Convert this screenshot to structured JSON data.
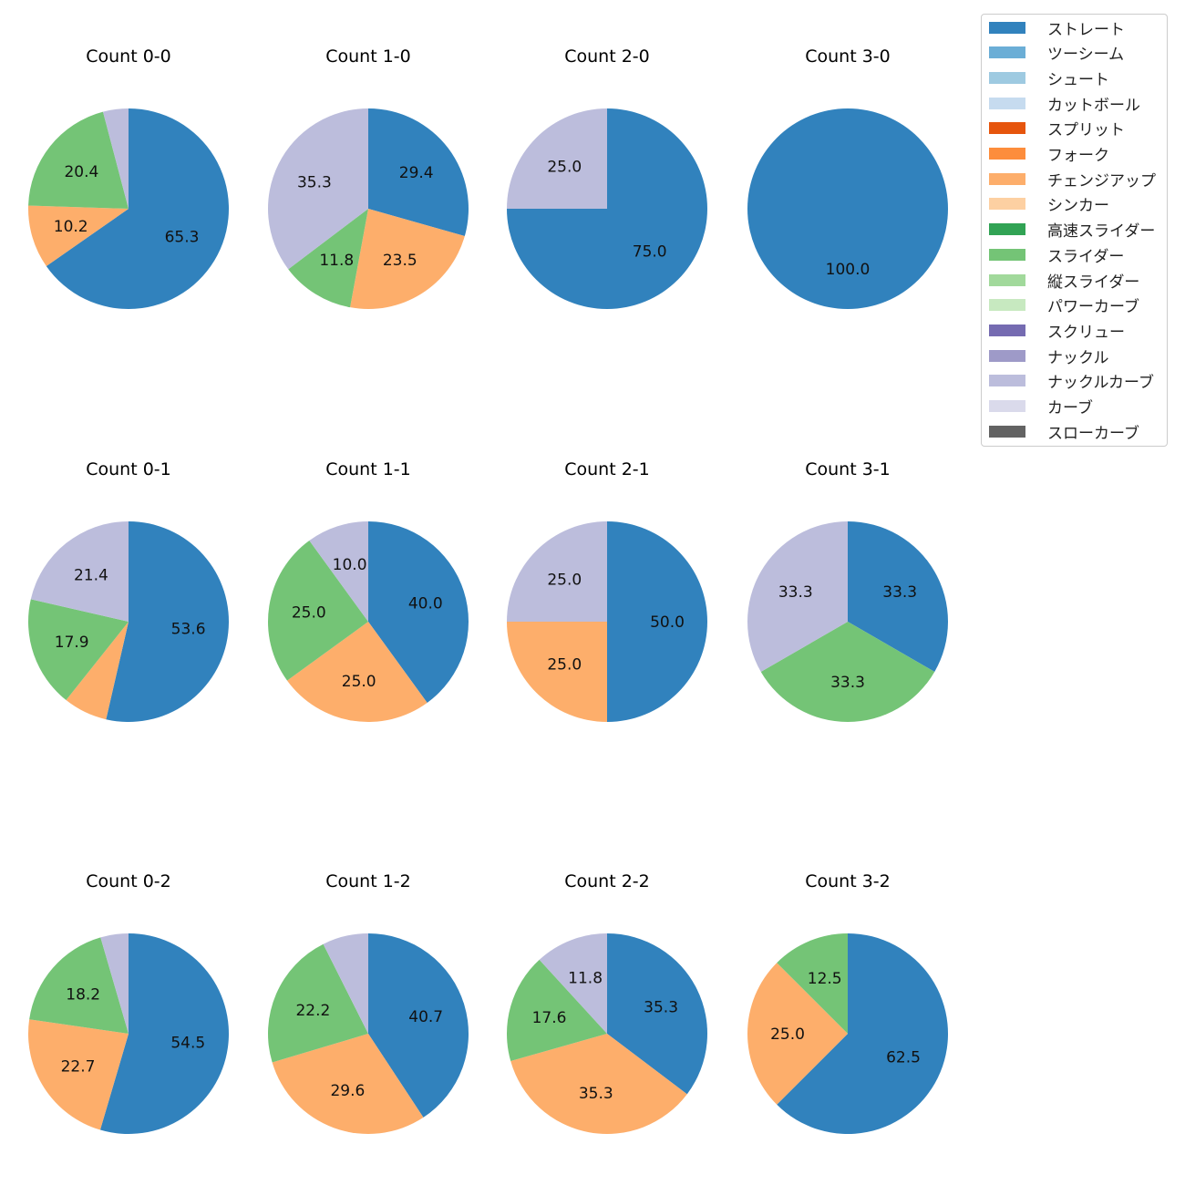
{
  "chart_data": {
    "type": "pie",
    "legend": {
      "placement": "top-right",
      "entries": [
        {
          "label": "ストレート",
          "color": "#3182bd"
        },
        {
          "label": "ツーシーム",
          "color": "#6baed6"
        },
        {
          "label": "シュート",
          "color": "#9ecae1"
        },
        {
          "label": "カットボール",
          "color": "#c6dbef"
        },
        {
          "label": "スプリット",
          "color": "#e6550d"
        },
        {
          "label": "フォーク",
          "color": "#fd8d3c"
        },
        {
          "label": "チェンジアップ",
          "color": "#fdae6b"
        },
        {
          "label": "シンカー",
          "color": "#fdd0a2"
        },
        {
          "label": "高速スライダー",
          "color": "#31a354"
        },
        {
          "label": "スライダー",
          "color": "#74c476"
        },
        {
          "label": "縦スライダー",
          "color": "#a1d99b"
        },
        {
          "label": "パワーカーブ",
          "color": "#c7e9c0"
        },
        {
          "label": "スクリュー",
          "color": "#756bb1"
        },
        {
          "label": "ナックル",
          "color": "#9e9ac8"
        },
        {
          "label": "ナックルカーブ",
          "color": "#bcbddc"
        },
        {
          "label": "カーブ",
          "color": "#dadaeb"
        },
        {
          "label": "スローカーブ",
          "color": "#636363"
        }
      ]
    },
    "pies": [
      {
        "title": "Count 0-0",
        "slices": [
          {
            "pitch": "ストレート",
            "value": 65.3,
            "label": "65.3"
          },
          {
            "pitch": "チェンジアップ",
            "value": 10.2,
            "label": "10.2"
          },
          {
            "pitch": "スライダー",
            "value": 20.4,
            "label": "20.4"
          },
          {
            "pitch": "ナックルカーブ",
            "value": 4.1,
            "label": ""
          }
        ]
      },
      {
        "title": "Count 1-0",
        "slices": [
          {
            "pitch": "ストレート",
            "value": 29.4,
            "label": "29.4"
          },
          {
            "pitch": "チェンジアップ",
            "value": 23.5,
            "label": "23.5"
          },
          {
            "pitch": "スライダー",
            "value": 11.8,
            "label": "11.8"
          },
          {
            "pitch": "ナックルカーブ",
            "value": 35.3,
            "label": "35.3"
          }
        ]
      },
      {
        "title": "Count 2-0",
        "slices": [
          {
            "pitch": "ストレート",
            "value": 75.0,
            "label": "75.0"
          },
          {
            "pitch": "ナックルカーブ",
            "value": 25.0,
            "label": "25.0"
          }
        ]
      },
      {
        "title": "Count 3-0",
        "slices": [
          {
            "pitch": "ストレート",
            "value": 100.0,
            "label": "100.0"
          }
        ]
      },
      {
        "title": "Count 0-1",
        "slices": [
          {
            "pitch": "ストレート",
            "value": 53.6,
            "label": "53.6"
          },
          {
            "pitch": "チェンジアップ",
            "value": 7.1,
            "label": ""
          },
          {
            "pitch": "スライダー",
            "value": 17.9,
            "label": "17.9"
          },
          {
            "pitch": "ナックルカーブ",
            "value": 21.4,
            "label": "21.4"
          }
        ]
      },
      {
        "title": "Count 1-1",
        "slices": [
          {
            "pitch": "ストレート",
            "value": 40.0,
            "label": "40.0"
          },
          {
            "pitch": "チェンジアップ",
            "value": 25.0,
            "label": "25.0"
          },
          {
            "pitch": "スライダー",
            "value": 25.0,
            "label": "25.0"
          },
          {
            "pitch": "ナックルカーブ",
            "value": 10.0,
            "label": "10.0"
          }
        ]
      },
      {
        "title": "Count 2-1",
        "slices": [
          {
            "pitch": "ストレート",
            "value": 50.0,
            "label": "50.0"
          },
          {
            "pitch": "チェンジアップ",
            "value": 25.0,
            "label": "25.0"
          },
          {
            "pitch": "ナックルカーブ",
            "value": 25.0,
            "label": "25.0"
          }
        ]
      },
      {
        "title": "Count 3-1",
        "slices": [
          {
            "pitch": "ストレート",
            "value": 33.3,
            "label": "33.3"
          },
          {
            "pitch": "スライダー",
            "value": 33.3,
            "label": "33.3"
          },
          {
            "pitch": "ナックルカーブ",
            "value": 33.3,
            "label": "33.3"
          }
        ]
      },
      {
        "title": "Count 0-2",
        "slices": [
          {
            "pitch": "ストレート",
            "value": 54.5,
            "label": "54.5"
          },
          {
            "pitch": "チェンジアップ",
            "value": 22.7,
            "label": "22.7"
          },
          {
            "pitch": "スライダー",
            "value": 18.2,
            "label": "18.2"
          },
          {
            "pitch": "ナックルカーブ",
            "value": 4.5,
            "label": ""
          }
        ]
      },
      {
        "title": "Count 1-2",
        "slices": [
          {
            "pitch": "ストレート",
            "value": 40.7,
            "label": "40.7"
          },
          {
            "pitch": "チェンジアップ",
            "value": 29.6,
            "label": "29.6"
          },
          {
            "pitch": "スライダー",
            "value": 22.2,
            "label": "22.2"
          },
          {
            "pitch": "ナックルカーブ",
            "value": 7.4,
            "label": ""
          }
        ]
      },
      {
        "title": "Count 2-2",
        "slices": [
          {
            "pitch": "ストレート",
            "value": 35.3,
            "label": "35.3"
          },
          {
            "pitch": "チェンジアップ",
            "value": 35.3,
            "label": "35.3"
          },
          {
            "pitch": "スライダー",
            "value": 17.6,
            "label": "17.6"
          },
          {
            "pitch": "ナックルカーブ",
            "value": 11.8,
            "label": "11.8"
          }
        ]
      },
      {
        "title": "Count 3-2",
        "slices": [
          {
            "pitch": "ストレート",
            "value": 62.5,
            "label": "62.5"
          },
          {
            "pitch": "チェンジアップ",
            "value": 25.0,
            "label": "25.0"
          },
          {
            "pitch": "スライダー",
            "value": 12.5,
            "label": "12.5"
          }
        ]
      }
    ]
  }
}
